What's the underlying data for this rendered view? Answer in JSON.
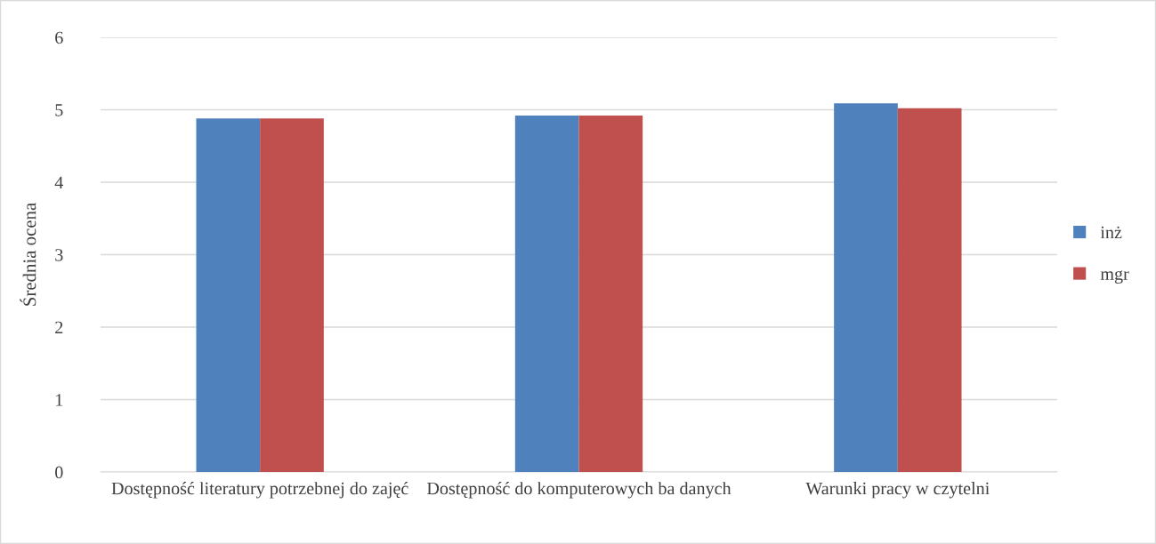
{
  "chart_data": {
    "type": "bar",
    "ylabel": "Średnia ocena",
    "categories": [
      "Dostępność literatury potrzebnej do zajęć",
      "Dostępność do komputerowych ba danych",
      "Warunki pracy w czytelni"
    ],
    "series": [
      {
        "name": "inż",
        "color": "#4f81bd",
        "values": [
          4.88,
          4.92,
          5.09
        ]
      },
      {
        "name": "mgr",
        "color": "#c0504d",
        "values": [
          4.88,
          4.92,
          5.02
        ]
      }
    ],
    "ylim": [
      0,
      6
    ],
    "yticks": [
      0,
      1,
      2,
      3,
      4,
      5,
      6
    ],
    "grid": "y",
    "legend": "right"
  }
}
